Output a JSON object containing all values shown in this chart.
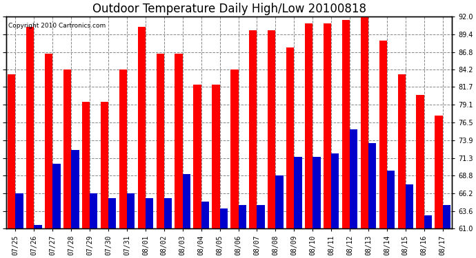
{
  "title": "Outdoor Temperature Daily High/Low 20100818",
  "copyright": "Copyright 2010 Cartronics.com",
  "dates": [
    "07/25",
    "07/26",
    "07/27",
    "07/28",
    "07/29",
    "07/30",
    "07/31",
    "08/01",
    "08/02",
    "08/03",
    "08/04",
    "08/05",
    "08/06",
    "08/07",
    "08/08",
    "08/09",
    "08/10",
    "08/11",
    "08/12",
    "08/13",
    "08/14",
    "08/15",
    "08/16",
    "08/17"
  ],
  "highs": [
    83.5,
    90.5,
    86.5,
    84.2,
    79.5,
    79.5,
    84.2,
    90.5,
    86.5,
    86.5,
    82.0,
    82.0,
    84.2,
    90.0,
    90.0,
    87.5,
    91.0,
    91.0,
    91.5,
    92.0,
    88.5,
    83.5,
    80.5,
    77.5
  ],
  "lows": [
    66.2,
    61.5,
    70.5,
    72.5,
    66.2,
    65.5,
    66.2,
    65.5,
    65.5,
    69.0,
    65.0,
    64.0,
    64.5,
    64.5,
    68.8,
    71.5,
    71.5,
    72.0,
    75.5,
    73.5,
    69.5,
    67.5,
    63.0,
    64.5
  ],
  "high_color": "#ff0000",
  "low_color": "#0000cc",
  "bg_color": "#ffffff",
  "plot_bg_color": "#ffffff",
  "grid_color": "#888888",
  "yticks": [
    61.0,
    63.6,
    66.2,
    68.8,
    71.3,
    73.9,
    76.5,
    79.1,
    81.7,
    84.2,
    86.8,
    89.4,
    92.0
  ],
  "ylim": [
    61.0,
    92.0
  ],
  "bar_width": 0.42,
  "title_fontsize": 12,
  "copyright_fontsize": 6.5,
  "tick_fontsize": 7
}
